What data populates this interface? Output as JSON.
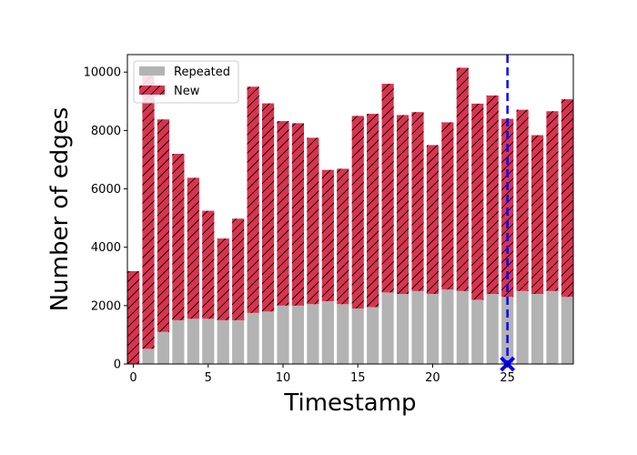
{
  "chart_data": {
    "type": "bar",
    "stacked": true,
    "xlabel": "Timestamp",
    "ylabel": "Number of edges",
    "x": [
      0,
      1,
      2,
      3,
      4,
      5,
      6,
      7,
      8,
      9,
      10,
      11,
      12,
      13,
      14,
      15,
      16,
      17,
      18,
      19,
      20,
      21,
      22,
      23,
      24,
      25,
      26,
      27,
      28,
      29
    ],
    "xlim": [
      -0.4,
      29.4
    ],
    "ylim": [
      0,
      10600
    ],
    "xticks": [
      0,
      5,
      10,
      15,
      20,
      25
    ],
    "yticks": [
      0,
      2000,
      4000,
      6000,
      8000,
      10000
    ],
    "grid": false,
    "legend_position": "top-left",
    "series": [
      {
        "name": "Repeated",
        "color": "#b3b3b3",
        "hatch": "none",
        "values": [
          0,
          520,
          1100,
          1500,
          1550,
          1550,
          1500,
          1500,
          1750,
          1800,
          2000,
          2000,
          2050,
          2150,
          2050,
          1900,
          1950,
          2450,
          2400,
          2500,
          2400,
          2550,
          2500,
          2200,
          2400,
          2300,
          2500,
          2400,
          2500,
          2300
        ]
      },
      {
        "name": "New",
        "color": "#d9344f",
        "hatch": "diagonal",
        "values": [
          3180,
          9580,
          7280,
          5700,
          4830,
          3700,
          2800,
          3480,
          7750,
          7130,
          6320,
          6250,
          5700,
          4500,
          4640,
          6600,
          6620,
          7150,
          6130,
          6130,
          5100,
          5730,
          7650,
          6720,
          6800,
          6100,
          6210,
          5440,
          6160,
          6770
        ]
      }
    ],
    "annotations": [
      {
        "type": "vertical-dashed-line",
        "x": 25,
        "color": "#0000ff"
      },
      {
        "type": "x-marker",
        "x": 25,
        "y": 0,
        "color": "#0000ff"
      }
    ]
  }
}
